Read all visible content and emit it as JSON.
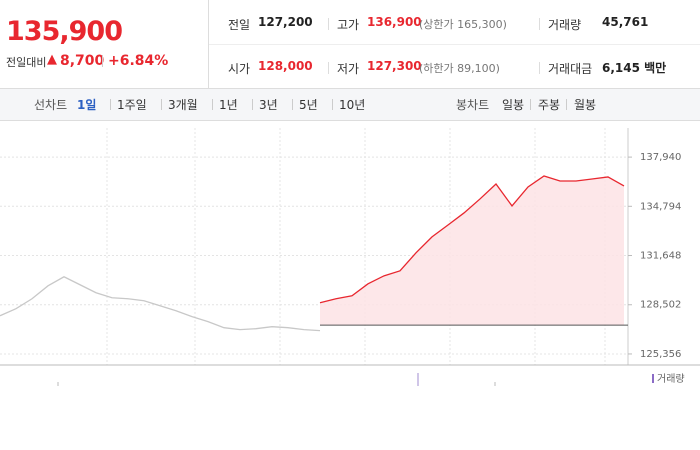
{
  "quote": {
    "price": "135,900",
    "change_label": "전일대비",
    "change": "8,700",
    "change_pct": "+6.84%"
  },
  "stats": [
    [
      {
        "label": "전일",
        "value": "127,200"
      },
      {
        "label": "고가",
        "value": "136,900",
        "note": "(상한가 165,300)"
      },
      {
        "label": "거래량",
        "value": "45,761"
      }
    ],
    [
      {
        "label": "시가",
        "value": "128,000"
      },
      {
        "label": "저가",
        "value": "127,300",
        "note": "(하한가 89,100)"
      },
      {
        "label": "거래대금",
        "value": "6,145 백만"
      }
    ]
  ],
  "tabs": {
    "line_label": "선차트",
    "line_periods": [
      "1일",
      "1주일",
      "3개월",
      "1년",
      "3년",
      "5년",
      "10년"
    ],
    "active": 0,
    "candle_label": "봉차트",
    "candle_periods": [
      "일봉",
      "주봉",
      "월봉"
    ]
  },
  "volume_label": "거래량",
  "chart_data": {
    "type": "line",
    "series": [
      {
        "color": "#c8c8c8",
        "values": [
          127800,
          128250,
          128885,
          129710,
          130290,
          129780,
          129270,
          128950,
          128885,
          128760,
          128440,
          128120,
          127740,
          127420,
          127035,
          126910,
          126970,
          127100,
          127035,
          126910,
          126845,
          null,
          null,
          null,
          null,
          null,
          null,
          null,
          null,
          null,
          null,
          null,
          null,
          null,
          null,
          null,
          null,
          null,
          null,
          null
        ]
      },
      {
        "color": "#e8272f",
        "fill": "#fde3e5",
        "values": [
          null,
          null,
          null,
          null,
          null,
          null,
          null,
          null,
          null,
          null,
          null,
          null,
          null,
          null,
          null,
          null,
          null,
          null,
          null,
          null,
          128630,
          128885,
          129075,
          129840,
          130350,
          130670,
          131820,
          132840,
          133600,
          134370,
          135265,
          136220,
          134820,
          136030,
          136730,
          136410,
          136410,
          136540,
          136670,
          136095
        ]
      }
    ],
    "baseline": 127200,
    "ylim": [
      124650,
      139800
    ],
    "yticks": [
      {
        "value": 125356,
        "label": "125,356"
      },
      {
        "value": 128502,
        "label": "128,502"
      },
      {
        "value": 131648,
        "label": "131,648"
      },
      {
        "value": 134794,
        "label": "134,794"
      },
      {
        "value": 137940,
        "label": "137,940"
      }
    ],
    "grid": true
  }
}
